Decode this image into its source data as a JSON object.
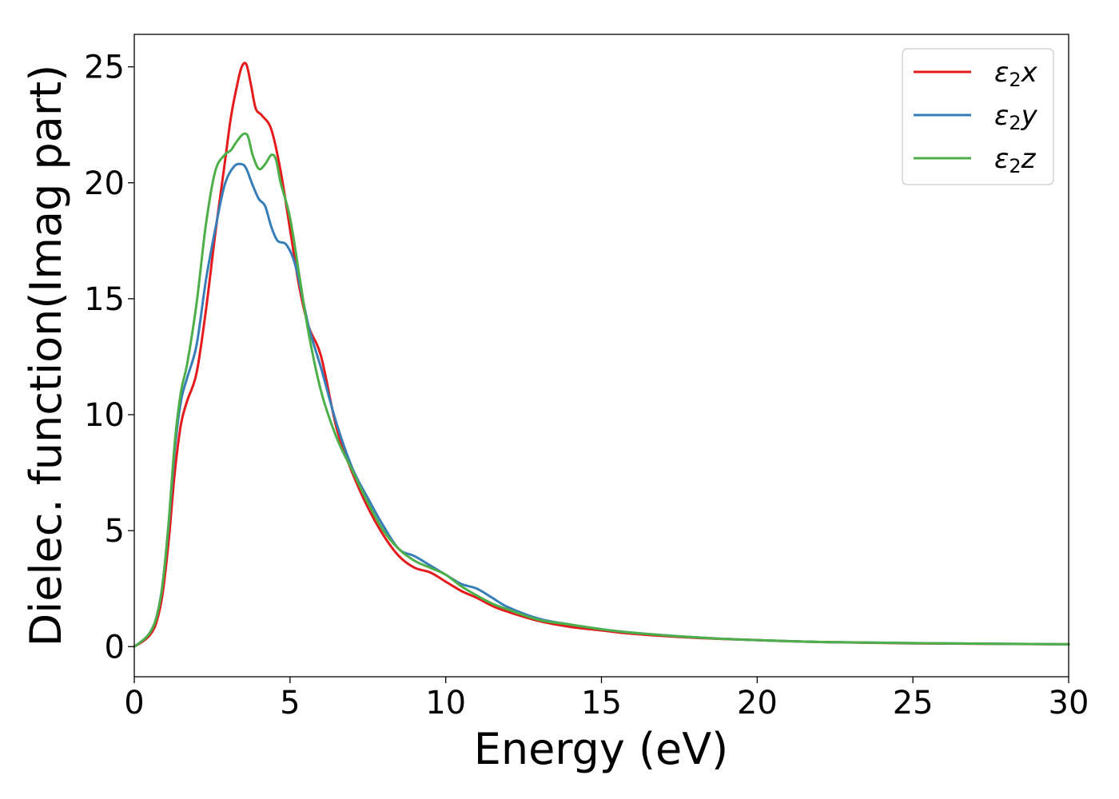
{
  "chart_data": {
    "type": "line",
    "xlabel": "Energy (eV)",
    "ylabel": "Dielec. function(Imag part)",
    "xlim": [
      0,
      30
    ],
    "ylim": [
      -1.3,
      26.4
    ],
    "xticks": [
      0,
      5,
      10,
      15,
      20,
      25,
      30
    ],
    "yticks": [
      0,
      5,
      10,
      15,
      20,
      25
    ],
    "grid": false,
    "legend_position": "top-right",
    "series": [
      {
        "name": "ε₂x",
        "label_base": "ε",
        "label_sub": "2",
        "label_suffix": "x",
        "color": "#e41a1c",
        "x": [
          0,
          0.3,
          0.5,
          0.7,
          0.9,
          1.1,
          1.3,
          1.5,
          1.7,
          2.0,
          2.3,
          2.6,
          2.9,
          3.1,
          3.3,
          3.45,
          3.6,
          3.75,
          3.9,
          4.1,
          4.4,
          4.7,
          5.0,
          5.3,
          5.6,
          6.0,
          6.5,
          7.0,
          7.5,
          8.0,
          8.5,
          9.0,
          9.5,
          10.0,
          10.5,
          11.0,
          11.5,
          12.0,
          13.0,
          14.0,
          15.0,
          16.0,
          18.0,
          20.0,
          22.0,
          25.0,
          30.0
        ],
        "values": [
          0,
          0.25,
          0.5,
          1.0,
          2.2,
          4.5,
          7.5,
          9.6,
          10.6,
          11.8,
          14.5,
          17.8,
          20.8,
          22.8,
          24.2,
          25.0,
          25.1,
          24.2,
          23.2,
          22.9,
          22.3,
          20.5,
          18.0,
          15.5,
          13.8,
          12.5,
          9.4,
          7.5,
          6.0,
          4.8,
          3.9,
          3.4,
          3.2,
          2.8,
          2.4,
          2.1,
          1.75,
          1.5,
          1.1,
          0.85,
          0.7,
          0.55,
          0.38,
          0.28,
          0.2,
          0.14,
          0.1
        ]
      },
      {
        "name": "ε₂y",
        "label_base": "ε",
        "label_sub": "2",
        "label_suffix": "y",
        "color": "#377eb8",
        "x": [
          0,
          0.3,
          0.5,
          0.7,
          0.9,
          1.1,
          1.3,
          1.5,
          1.7,
          2.0,
          2.3,
          2.6,
          2.9,
          3.2,
          3.45,
          3.6,
          3.8,
          4.0,
          4.2,
          4.4,
          4.6,
          4.9,
          5.2,
          5.6,
          6.0,
          6.5,
          7.0,
          7.5,
          8.0,
          8.5,
          9.0,
          9.5,
          10.0,
          10.5,
          11.0,
          11.5,
          12.0,
          13.0,
          14.0,
          15.0,
          16.0,
          18.0,
          20.0,
          22.0,
          25.0,
          30.0
        ],
        "values": [
          0,
          0.3,
          0.6,
          1.2,
          2.6,
          5.2,
          8.5,
          10.6,
          11.6,
          13.0,
          15.8,
          18.0,
          19.9,
          20.7,
          20.8,
          20.6,
          19.9,
          19.3,
          19.0,
          18.1,
          17.5,
          17.3,
          16.3,
          13.8,
          12.0,
          9.6,
          7.7,
          6.4,
          5.2,
          4.2,
          3.9,
          3.5,
          3.1,
          2.7,
          2.5,
          2.1,
          1.7,
          1.2,
          0.95,
          0.75,
          0.6,
          0.4,
          0.28,
          0.2,
          0.15,
          0.1
        ]
      },
      {
        "name": "ε₂z",
        "label_base": "ε",
        "label_sub": "2",
        "label_suffix": "z",
        "color": "#4daf4a",
        "x": [
          0,
          0.3,
          0.5,
          0.7,
          0.9,
          1.1,
          1.3,
          1.5,
          1.7,
          2.0,
          2.3,
          2.6,
          2.9,
          3.1,
          3.3,
          3.5,
          3.65,
          3.8,
          4.0,
          4.2,
          4.4,
          4.55,
          4.7,
          5.0,
          5.3,
          5.6,
          6.0,
          6.5,
          7.0,
          7.5,
          8.0,
          8.5,
          9.0,
          9.5,
          10.0,
          10.5,
          11.0,
          11.5,
          12.0,
          13.0,
          14.0,
          15.0,
          16.0,
          18.0,
          20.0,
          22.0,
          25.0,
          30.0
        ],
        "values": [
          0,
          0.3,
          0.6,
          1.2,
          2.6,
          5.3,
          8.8,
          11.0,
          12.2,
          14.8,
          18.2,
          20.5,
          21.2,
          21.4,
          21.8,
          22.1,
          22.0,
          21.2,
          20.6,
          20.8,
          21.2,
          21.0,
          20.0,
          18.5,
          16.0,
          13.5,
          11.0,
          9.0,
          7.6,
          6.2,
          5.0,
          4.2,
          3.7,
          3.4,
          3.1,
          2.6,
          2.2,
          1.85,
          1.6,
          1.15,
          0.95,
          0.75,
          0.6,
          0.4,
          0.28,
          0.2,
          0.15,
          0.1
        ]
      }
    ]
  }
}
